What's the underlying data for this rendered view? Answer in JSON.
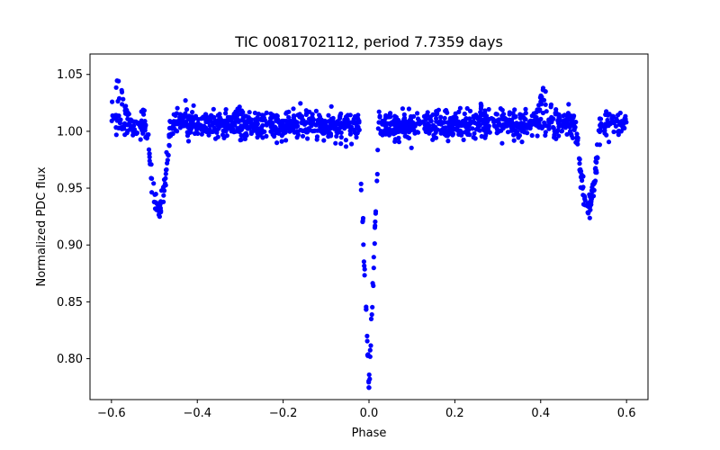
{
  "chart_data": {
    "type": "scatter",
    "title": "TIC 0081702112, period 7.7359 days",
    "xlabel": "Phase",
    "ylabel": "Normalized PDC flux",
    "xlim": [
      -0.65,
      0.65
    ],
    "ylim": [
      0.764,
      1.068
    ],
    "grid": false,
    "marker_color": "#0000ff",
    "x_ticks": [
      -0.6,
      -0.4,
      -0.2,
      0.0,
      0.2,
      0.4,
      0.6
    ],
    "x_tick_labels": [
      "−0.6",
      "−0.4",
      "−0.2",
      "0.0",
      "0.2",
      "0.4",
      "0.6"
    ],
    "y_ticks": [
      0.8,
      0.85,
      0.9,
      0.95,
      1.0,
      1.05
    ],
    "y_tick_labels": [
      "0.80",
      "0.85",
      "0.90",
      "0.95",
      "1.00",
      "1.05"
    ],
    "series": [
      {
        "name": "flux",
        "features": {
          "baseline": 1.006,
          "scatter": 0.006,
          "primary_eclipse": {
            "center": 0.0,
            "depth": 0.232,
            "half_width": 0.022
          },
          "secondary_eclipses": [
            {
              "center": -0.49,
              "depth": 0.073,
              "half_width": 0.03
            },
            {
              "center": 0.51,
              "depth": 0.073,
              "half_width": 0.03
            }
          ],
          "brightenings": [
            {
              "center": -0.585,
              "peak": 1.05,
              "half_width": 0.035
            },
            {
              "center": 0.415,
              "peak": 1.05,
              "half_width": 0.035
            },
            {
              "center": 0.265,
              "peak": 1.035,
              "half_width": 0.012
            }
          ],
          "phase_range": [
            -0.6,
            0.6
          ],
          "n_points": 1500
        }
      }
    ]
  }
}
